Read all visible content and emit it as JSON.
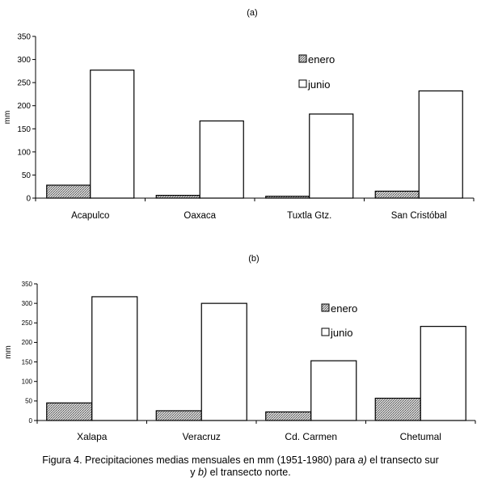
{
  "charts": [
    {
      "panel_label": "(a)",
      "ylabel": "mm",
      "ylim": [
        0,
        350
      ],
      "yticks": [
        0,
        50,
        100,
        150,
        200,
        250,
        300,
        350
      ],
      "legend": [
        "enero",
        "junio"
      ]
    },
    {
      "panel_label": "(b)",
      "ylabel": "mm",
      "ylim": [
        0,
        350
      ],
      "yticks": [
        0,
        50,
        100,
        150,
        200,
        250,
        300,
        350
      ],
      "legend": [
        "enero",
        "junio"
      ]
    }
  ],
  "chart_data": [
    {
      "type": "bar",
      "title": "(a)",
      "categories": [
        "Acapulco",
        "Oaxaca",
        "Tuxtla Gtz.",
        "San Cristóbal"
      ],
      "series": [
        {
          "name": "enero",
          "values": [
            28,
            6,
            4,
            15
          ]
        },
        {
          "name": "junio",
          "values": [
            277,
            167,
            182,
            232
          ]
        }
      ],
      "xlabel": "",
      "ylabel": "mm",
      "ylim": [
        0,
        350
      ],
      "grid": false,
      "legend_position": "top-right"
    },
    {
      "type": "bar",
      "title": "(b)",
      "categories": [
        "Xalapa",
        "Veracruz",
        "Cd. Carmen",
        "Chetumal"
      ],
      "series": [
        {
          "name": "enero",
          "values": [
            45,
            25,
            22,
            57
          ]
        },
        {
          "name": "junio",
          "values": [
            317,
            300,
            153,
            241
          ]
        }
      ],
      "xlabel": "",
      "ylabel": "mm",
      "ylim": [
        0,
        350
      ],
      "grid": false,
      "legend_position": "top-right"
    }
  ],
  "caption": {
    "part1": "Figura 4. Precipitaciones medias mensuales en mm (1951-1980) para ",
    "part2": "a)",
    "part3": " el transecto sur",
    "part4": "y ",
    "part5": "b)",
    "part6": " el transecto norte."
  },
  "colors": {
    "bar_stroke": "#000000",
    "junio_fill": "#ffffff",
    "enero_fill": "#9a9a9a"
  }
}
